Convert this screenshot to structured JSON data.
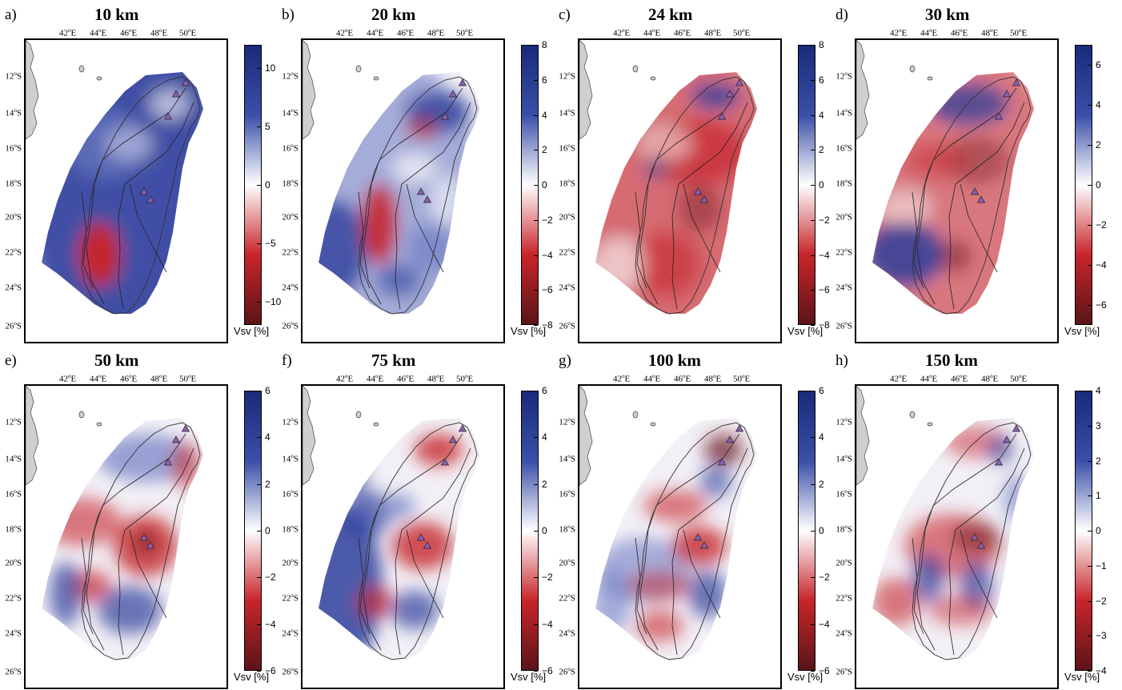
{
  "colors": {
    "positive_max": "#1a2a7a",
    "positive_mid": "#3b4fa8",
    "neutral": "#ffffff",
    "negative_mid": "#c8252b",
    "negative_max": "#5a1418",
    "land": "#cfcfcf",
    "station_fill": "#8a5fb0"
  },
  "colorbar_label": "Vsv [%]",
  "longitude_labels": [
    "42",
    "44",
    "46",
    "48",
    "50"
  ],
  "longitude_suffix": "E",
  "latitude_labels": [
    "12",
    "14",
    "16",
    "18",
    "20",
    "22",
    "24",
    "26"
  ],
  "latitude_suffix": "S",
  "degree_symbol": "o",
  "panels": [
    {
      "letter": "a)",
      "depth": "10 km",
      "colorbar_ticks": [
        "10",
        "5",
        "0",
        "−5",
        "−10"
      ],
      "range": 12,
      "pattern": "blue"
    },
    {
      "letter": "b)",
      "depth": "20 km",
      "colorbar_ticks": [
        "8",
        "6",
        "4",
        "2",
        "0",
        "−2",
        "−4",
        "−6",
        "−8"
      ],
      "range": 8,
      "pattern": "mixed"
    },
    {
      "letter": "c)",
      "depth": "24 km",
      "colorbar_ticks": [
        "8",
        "6",
        "4",
        "2",
        "0",
        "−2",
        "−4",
        "−6",
        "−8"
      ],
      "range": 8,
      "pattern": "red"
    },
    {
      "letter": "d)",
      "depth": "30 km",
      "colorbar_ticks": [
        "6",
        "4",
        "2",
        "0",
        "−2",
        "−4",
        "−6"
      ],
      "range": 7,
      "pattern": "red-sw-blue"
    },
    {
      "letter": "e)",
      "depth": "50 km",
      "colorbar_ticks": [
        "6",
        "4",
        "2",
        "0",
        "−2",
        "−4",
        "−6"
      ],
      "range": 6,
      "pattern": "mixed2"
    },
    {
      "letter": "f)",
      "depth": "75 km",
      "colorbar_ticks": [
        "6",
        "4",
        "2",
        "0",
        "−2",
        "−4",
        "−6"
      ],
      "range": 6,
      "pattern": "west-blue"
    },
    {
      "letter": "g)",
      "depth": "100 km",
      "colorbar_ticks": [
        "6",
        "4",
        "2",
        "0",
        "−2",
        "−4",
        "−6"
      ],
      "range": 6,
      "pattern": "bands"
    },
    {
      "letter": "h)",
      "depth": "150 km",
      "colorbar_ticks": [
        "4",
        "3",
        "2",
        "1",
        "0",
        "−1",
        "−2",
        "−3",
        "−4"
      ],
      "range": 4,
      "pattern": "mixed3"
    }
  ]
}
